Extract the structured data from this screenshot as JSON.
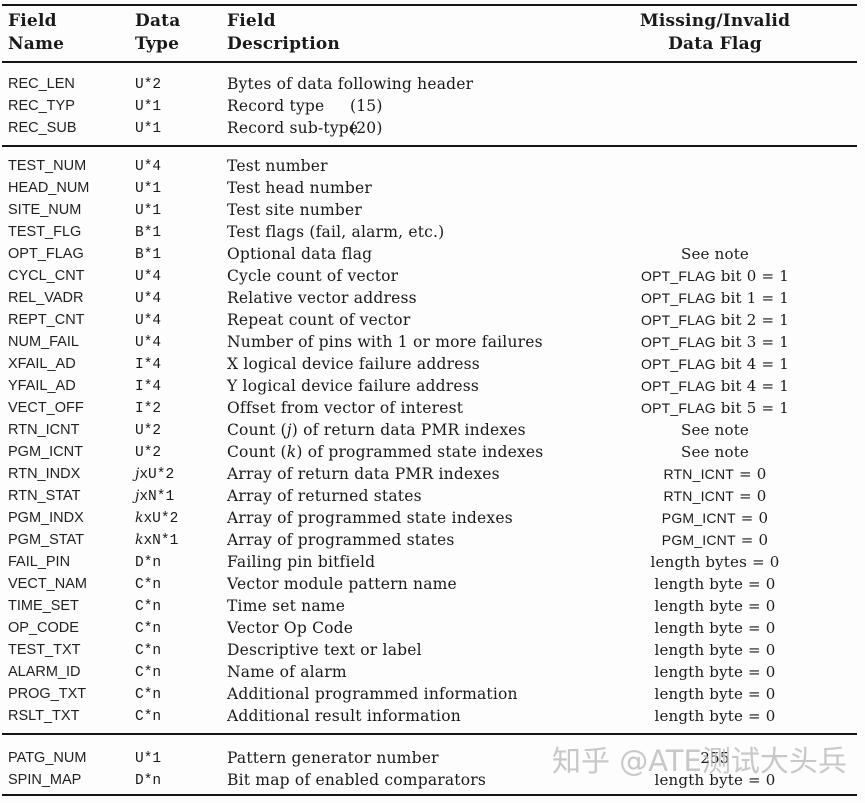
{
  "table": {
    "headers": {
      "col1_line1": "Field",
      "col1_line2": "Name",
      "col2_line1": "Data",
      "col2_line2": "Type",
      "col3_line1": "Field",
      "col3_line2": "Description",
      "col4_line1": "Missing/Invalid",
      "col4_line2": "Data Flag"
    },
    "sections": [
      {
        "id": "header-group",
        "rows": [
          {
            "name": "REC_LEN",
            "type": "U*2",
            "desc": "Bytes of data following header"
          },
          {
            "name": "REC_TYP",
            "type": "U*1",
            "desc": "Record type",
            "desc_num": "(15)"
          },
          {
            "name": "REC_SUB",
            "type": "U*1",
            "desc": "Record sub-type",
            "desc_num": "(20)"
          }
        ]
      },
      {
        "id": "body-group",
        "rows": [
          {
            "name": "TEST_NUM",
            "type": "U*4",
            "desc": "Test number"
          },
          {
            "name": "HEAD_NUM",
            "type": "U*1",
            "desc": "Test head number"
          },
          {
            "name": "SITE_NUM",
            "type": "U*1",
            "desc": "Test site number"
          },
          {
            "name": "TEST_FLG",
            "type": "B*1",
            "desc": "Test flags (fail, alarm, etc.)"
          },
          {
            "name": "OPT_FLAG",
            "type": "B*1",
            "desc": "Optional data flag",
            "flag_text": "See note"
          },
          {
            "name": "CYCL_CNT",
            "type": "U*4",
            "desc": "Cycle count of vector",
            "flag_code": "OPT_FLAG",
            "flag_text": " bit 0 = 1"
          },
          {
            "name": "REL_VADR",
            "type": "U*4",
            "desc": "Relative vector address",
            "flag_code": "OPT_FLAG",
            "flag_text": " bit 1 = 1"
          },
          {
            "name": "REPT_CNT",
            "type": "U*4",
            "desc": "Repeat count of vector",
            "flag_code": "OPT_FLAG",
            "flag_text": " bit 2 = 1"
          },
          {
            "name": "NUM_FAIL",
            "type": "U*4",
            "desc": "Number of pins with 1 or more failures",
            "flag_code": "OPT_FLAG",
            "flag_text": " bit 3 = 1"
          },
          {
            "name": "XFAIL_AD",
            "type": "I*4",
            "desc": "X logical device failure address",
            "flag_code": "OPT_FLAG",
            "flag_text": " bit 4 = 1"
          },
          {
            "name": "YFAIL_AD",
            "type": "I*4",
            "desc": "Y logical device failure address",
            "flag_code": "OPT_FLAG",
            "flag_text": " bit 4 = 1"
          },
          {
            "name": "VECT_OFF",
            "type": "I*2",
            "desc": "Offset from vector of interest",
            "flag_code": "OPT_FLAG",
            "flag_text": " bit 5 = 1"
          },
          {
            "name": "RTN_ICNT",
            "type": "U*2",
            "desc": "Count (",
            "desc_ital": "j",
            "desc_post": ") of return data PMR indexes",
            "flag_text": "See note"
          },
          {
            "name": "PGM_ICNT",
            "type": "U*2",
            "desc": "Count (",
            "desc_ital": "k",
            "desc_post": ") of programmed state indexes",
            "flag_text": "See note"
          },
          {
            "name": "RTN_INDX",
            "type_ital": "j",
            "type": "xU*2",
            "desc": "Array of return data PMR indexes",
            "flag_code": "RTN_ICNT",
            "flag_text": " = 0"
          },
          {
            "name": "RTN_STAT",
            "type_ital": "j",
            "type": "xN*1",
            "desc": "Array of returned states",
            "flag_code": "RTN_ICNT",
            "flag_text": " = 0"
          },
          {
            "name": "PGM_INDX",
            "type_ital": "k",
            "type": "xU*2",
            "desc": "Array of programmed state indexes",
            "flag_code": "PGM_ICNT",
            "flag_text": " = 0"
          },
          {
            "name": "PGM_STAT",
            "type_ital": "k",
            "type": "xN*1",
            "desc": "Array of programmed states",
            "flag_code": "PGM_ICNT",
            "flag_text": " = 0"
          },
          {
            "name": "FAIL_PIN",
            "type": "D*n",
            "desc": "Failing pin bitfield",
            "flag_text": "length bytes = 0"
          },
          {
            "name": "VECT_NAM",
            "type": "C*n",
            "desc": "Vector module pattern name",
            "flag_text": "length byte = 0"
          },
          {
            "name": "TIME_SET",
            "type": "C*n",
            "desc": "Time set name",
            "flag_text": "length byte = 0"
          },
          {
            "name": "OP_CODE",
            "type": "C*n",
            "desc": "Vector Op Code",
            "flag_text": "length byte = 0"
          },
          {
            "name": "TEST_TXT",
            "type": "C*n",
            "desc": "Descriptive text or label",
            "flag_text": "length byte = 0"
          },
          {
            "name": "ALARM_ID",
            "type": "C*n",
            "desc": "Name of alarm",
            "flag_text": "length byte = 0"
          },
          {
            "name": "PROG_TXT",
            "type": "C*n",
            "desc": "Additional programmed information",
            "flag_text": "length byte = 0"
          },
          {
            "name": "RSLT_TXT",
            "type": "C*n",
            "desc": "Additional result information",
            "flag_text": "length byte = 0"
          }
        ]
      },
      {
        "id": "generator-group",
        "rows": [
          {
            "name": "PATG_NUM",
            "type": "U*1",
            "desc": "Pattern generator number",
            "flag_text": "255"
          },
          {
            "name": "SPIN_MAP",
            "type": "D*n",
            "desc": "Bit map of enabled comparators",
            "flag_text": "length byte = 0"
          }
        ]
      }
    ]
  },
  "watermark": "知乎 @ATE测试大头兵",
  "colors": {
    "text": "#1a1a1a",
    "rule": "#151515",
    "watermark": "#bababa",
    "background": "#fdfdfd"
  }
}
